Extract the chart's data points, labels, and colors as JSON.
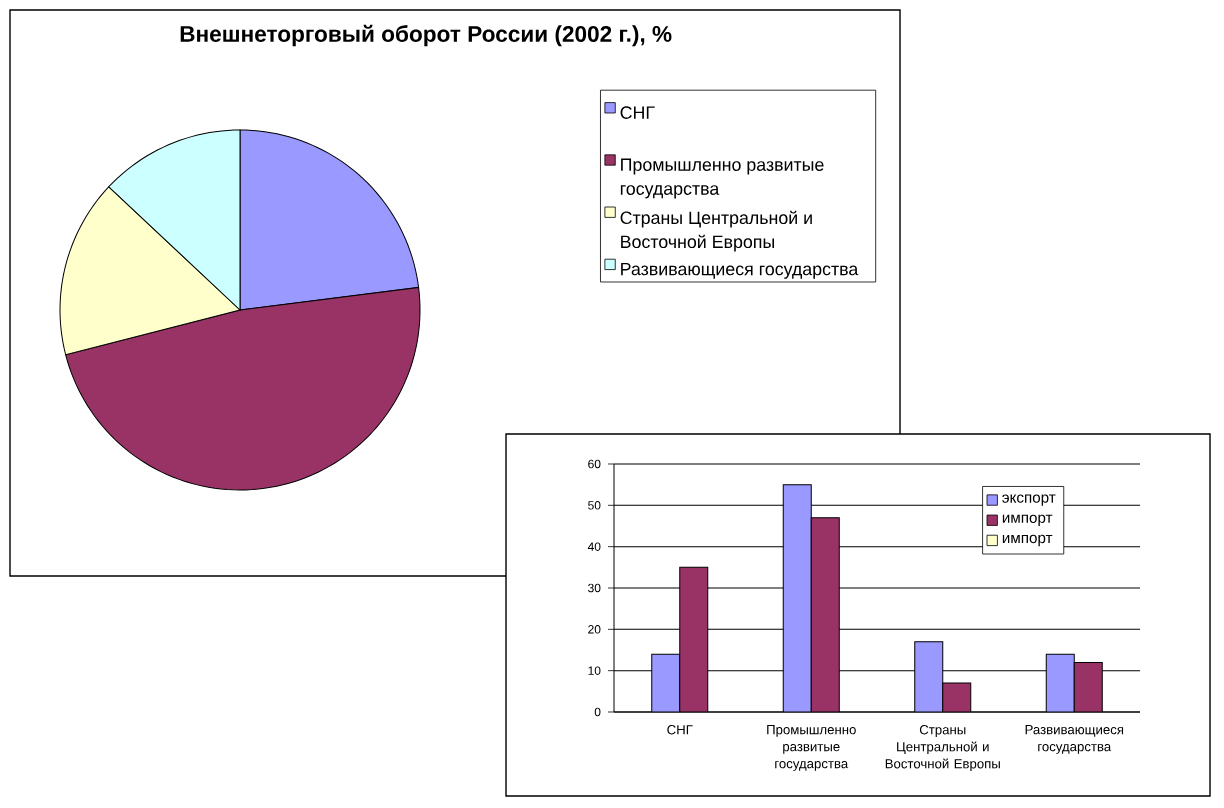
{
  "chart_data": [
    {
      "type": "pie",
      "title": "Внешнеторговый оборот России (2002 г.), %",
      "categories": [
        "СНГ",
        "Промышленно развитые государства",
        "Страны Центральной и Восточной Европы",
        "Развивающиеся государства"
      ],
      "values": [
        23,
        48,
        16,
        13
      ],
      "colors": [
        "#9999ff",
        "#993366",
        "#ffffcc",
        "#ccffff"
      ],
      "legend": "right"
    },
    {
      "type": "bar",
      "categories": [
        "СНГ",
        "Промышленно развитые государства",
        "Страны Центральной и Восточной Европы",
        "Развивающиеся государства"
      ],
      "series": [
        {
          "name": "экспорт",
          "color": "#9999ff",
          "values": [
            14,
            55,
            17,
            14
          ]
        },
        {
          "name": "импорт",
          "color": "#993366",
          "values": [
            35,
            47,
            7,
            12
          ]
        },
        {
          "name": "импорт",
          "color": "#ffffcc",
          "values": [
            null,
            null,
            null,
            null
          ]
        }
      ],
      "ylim": [
        0,
        60
      ],
      "yticks": [
        0,
        10,
        20,
        30,
        40,
        50,
        60
      ],
      "grid": "y",
      "legend": "top right"
    }
  ]
}
